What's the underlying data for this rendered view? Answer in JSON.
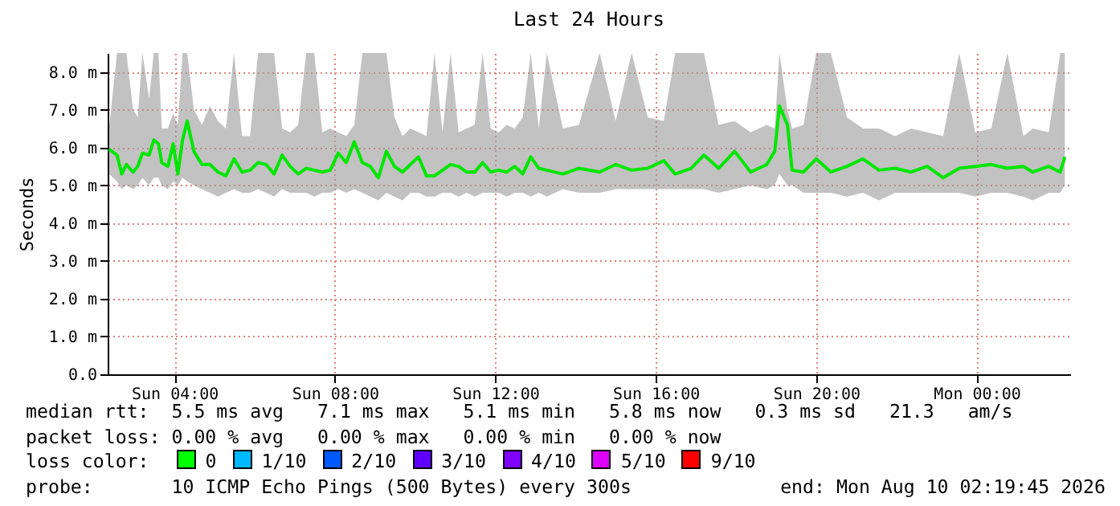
{
  "chart_data": {
    "type": "line",
    "title": "Last 24 Hours",
    "ylabel": "Seconds",
    "x": [
      "2026-08-09T02:22",
      "2026-08-09T02:34",
      "2026-08-09T02:41",
      "2026-08-09T02:48",
      "2026-08-09T02:58",
      "2026-08-09T03:05",
      "2026-08-09T03:12",
      "2026-08-09T03:22",
      "2026-08-09T03:29",
      "2026-08-09T03:36",
      "2026-08-09T03:41",
      "2026-08-09T03:50",
      "2026-08-09T03:58",
      "2026-08-09T04:05",
      "2026-08-09T04:12",
      "2026-08-09T04:19",
      "2026-08-09T04:29",
      "2026-08-09T04:41",
      "2026-08-09T04:53",
      "2026-08-09T05:05",
      "2026-08-09T05:17",
      "2026-08-09T05:29",
      "2026-08-09T05:41",
      "2026-08-09T05:53",
      "2026-08-09T06:05",
      "2026-08-09T06:17",
      "2026-08-09T06:29",
      "2026-08-09T06:41",
      "2026-08-09T06:53",
      "2026-08-09T07:05",
      "2026-08-09T07:17",
      "2026-08-09T07:29",
      "2026-08-09T07:41",
      "2026-08-09T07:53",
      "2026-08-09T08:05",
      "2026-08-09T08:17",
      "2026-08-09T08:29",
      "2026-08-09T08:41",
      "2026-08-09T08:53",
      "2026-08-09T09:05",
      "2026-08-09T09:17",
      "2026-08-09T09:29",
      "2026-08-09T09:41",
      "2026-08-09T09:53",
      "2026-08-09T10:05",
      "2026-08-09T10:17",
      "2026-08-09T10:29",
      "2026-08-09T10:41",
      "2026-08-09T10:53",
      "2026-08-09T11:05",
      "2026-08-09T11:17",
      "2026-08-09T11:29",
      "2026-08-09T11:41",
      "2026-08-09T11:53",
      "2026-08-09T12:05",
      "2026-08-09T12:17",
      "2026-08-09T12:29",
      "2026-08-09T12:41",
      "2026-08-09T12:53",
      "2026-08-09T13:05",
      "2026-08-09T13:17",
      "2026-08-09T13:41",
      "2026-08-09T14:05",
      "2026-08-09T14:36",
      "2026-08-09T15:00",
      "2026-08-09T15:24",
      "2026-08-09T15:48",
      "2026-08-09T16:12",
      "2026-08-09T16:29",
      "2026-08-09T16:53",
      "2026-08-09T17:12",
      "2026-08-09T17:34",
      "2026-08-09T17:58",
      "2026-08-09T18:22",
      "2026-08-09T18:46",
      "2026-08-09T18:58",
      "2026-08-09T19:05",
      "2026-08-09T19:17",
      "2026-08-09T19:24",
      "2026-08-09T19:41",
      "2026-08-09T20:00",
      "2026-08-09T20:22",
      "2026-08-09T20:46",
      "2026-08-09T21:10",
      "2026-08-09T21:34",
      "2026-08-09T21:58",
      "2026-08-09T22:22",
      "2026-08-09T22:46",
      "2026-08-09T23:10",
      "2026-08-09T23:34",
      "2026-08-09T23:58",
      "2026-08-10T00:22",
      "2026-08-10T00:46",
      "2026-08-10T01:10",
      "2026-08-10T01:24",
      "2026-08-10T01:48",
      "2026-08-10T02:05",
      "2026-08-10T02:12"
    ],
    "series": [
      {
        "color": "#00e600",
        "values": [
          5.95,
          5.8,
          5.3,
          5.55,
          5.35,
          5.5,
          5.85,
          5.8,
          6.2,
          6.1,
          5.6,
          5.5,
          6.1,
          5.3,
          6.2,
          6.7,
          5.9,
          5.55,
          5.55,
          5.35,
          5.25,
          5.7,
          5.35,
          5.4,
          5.6,
          5.55,
          5.3,
          5.8,
          5.5,
          5.3,
          5.45,
          5.4,
          5.35,
          5.4,
          5.85,
          5.6,
          6.15,
          5.6,
          5.5,
          5.2,
          5.9,
          5.5,
          5.35,
          5.55,
          5.75,
          5.25,
          5.25,
          5.4,
          5.55,
          5.5,
          5.35,
          5.35,
          5.6,
          5.35,
          5.4,
          5.35,
          5.5,
          5.3,
          5.75,
          5.45,
          5.4,
          5.3,
          5.45,
          5.35,
          5.55,
          5.4,
          5.45,
          5.65,
          5.3,
          5.45,
          5.8,
          5.45,
          5.9,
          5.35,
          5.55,
          5.9,
          7.1,
          6.6,
          5.4,
          5.35,
          5.7,
          5.35,
          5.5,
          5.7,
          5.4,
          5.45,
          5.35,
          5.5,
          5.2,
          5.45,
          5.5,
          5.55,
          5.45,
          5.5,
          5.35,
          5.5,
          5.35,
          5.75
        ],
        "lower": [
          5.3,
          5.1,
          4.9,
          5.0,
          4.9,
          5.0,
          5.2,
          5.0,
          5.2,
          5.2,
          5.0,
          4.9,
          5.1,
          5.0,
          5.2,
          5.1,
          5.0,
          4.9,
          4.8,
          4.7,
          4.8,
          4.9,
          4.8,
          4.8,
          4.9,
          4.8,
          4.7,
          4.9,
          4.8,
          4.8,
          4.8,
          4.7,
          4.8,
          4.8,
          4.9,
          4.8,
          4.9,
          4.8,
          4.7,
          4.6,
          4.8,
          4.7,
          4.6,
          4.8,
          4.8,
          4.7,
          4.7,
          4.8,
          4.8,
          4.7,
          4.8,
          4.7,
          4.8,
          4.8,
          4.8,
          4.7,
          4.8,
          4.8,
          4.7,
          4.8,
          4.7,
          4.9,
          4.8,
          4.8,
          4.9,
          4.9,
          4.9,
          4.9,
          4.9,
          4.9,
          4.9,
          4.8,
          4.9,
          5.0,
          4.9,
          5.0,
          5.3,
          5.0,
          5.0,
          4.8,
          4.8,
          4.8,
          4.7,
          4.8,
          4.6,
          4.8,
          4.8,
          4.8,
          4.8,
          4.8,
          4.7,
          4.8,
          4.8,
          4.7,
          4.6,
          4.8,
          4.8,
          5.0
        ],
        "upper": [
          6.5,
          8.5,
          8.5,
          8.5,
          7.0,
          6.8,
          8.5,
          7.3,
          8.5,
          8.5,
          6.5,
          6.5,
          6.9,
          6.6,
          8.5,
          8.5,
          7.0,
          6.6,
          7.1,
          6.7,
          6.5,
          8.5,
          6.3,
          6.3,
          8.5,
          8.5,
          8.5,
          6.5,
          6.4,
          6.6,
          8.5,
          8.5,
          6.4,
          6.5,
          6.4,
          6.3,
          6.6,
          8.5,
          8.5,
          8.5,
          8.5,
          6.8,
          6.3,
          6.5,
          6.4,
          6.3,
          8.5,
          6.4,
          8.5,
          6.4,
          6.5,
          6.6,
          8.5,
          6.5,
          6.4,
          6.6,
          6.5,
          6.8,
          8.5,
          6.5,
          8.5,
          6.5,
          6.6,
          8.5,
          6.7,
          8.5,
          6.8,
          6.7,
          8.5,
          8.5,
          8.5,
          6.6,
          6.7,
          6.4,
          6.6,
          6.5,
          8.5,
          7.0,
          6.5,
          6.6,
          8.5,
          8.5,
          6.8,
          6.5,
          6.5,
          6.3,
          6.5,
          6.4,
          6.3,
          8.5,
          6.4,
          6.5,
          8.5,
          6.3,
          6.5,
          6.4,
          8.5,
          8.5
        ]
      }
    ],
    "xlim": [
      "2026-08-09T02:20",
      "2026-08-10T02:20"
    ],
    "ylim": [
      0,
      8.5
    ],
    "xticks": [
      {
        "value": "2026-08-09T04:00",
        "label": "Sun 04:00"
      },
      {
        "value": "2026-08-09T08:00",
        "label": "Sun 08:00"
      },
      {
        "value": "2026-08-09T12:00",
        "label": "Sun 12:00"
      },
      {
        "value": "2026-08-09T16:00",
        "label": "Sun 16:00"
      },
      {
        "value": "2026-08-09T20:00",
        "label": "Sun 20:00"
      },
      {
        "value": "2026-08-10T00:00",
        "label": "Mon 00:00"
      }
    ],
    "yticks": [
      {
        "value": 0,
        "label": "0.0"
      },
      {
        "value": 1,
        "label": "1.0 m"
      },
      {
        "value": 2,
        "label": "2.0 m"
      },
      {
        "value": 3,
        "label": "3.0 m"
      },
      {
        "value": 4,
        "label": "4.0 m"
      },
      {
        "value": 5,
        "label": "5.0 m"
      },
      {
        "value": 6,
        "label": "6.0 m"
      },
      {
        "value": 7,
        "label": "7.0 m"
      },
      {
        "value": 8,
        "label": "8.0 m"
      }
    ],
    "grid": true,
    "annotations": [
      "median rtt:  5.5 ms avg   7.1 ms max   5.1 ms min   5.8 ms now   0.3 ms sd   21.3   am/s",
      "packet loss: 0.00 % avg   0.00 % max   0.00 % min   0.00 % now",
      "loss color:",
      "0",
      "1/10",
      "2/10",
      "3/10",
      "4/10",
      "5/10",
      "9/10",
      "probe:       10 ICMP Echo Pings (500 Bytes) every 300s",
      "end: Mon Aug 10 02:19:45 2026"
    ]
  }
}
